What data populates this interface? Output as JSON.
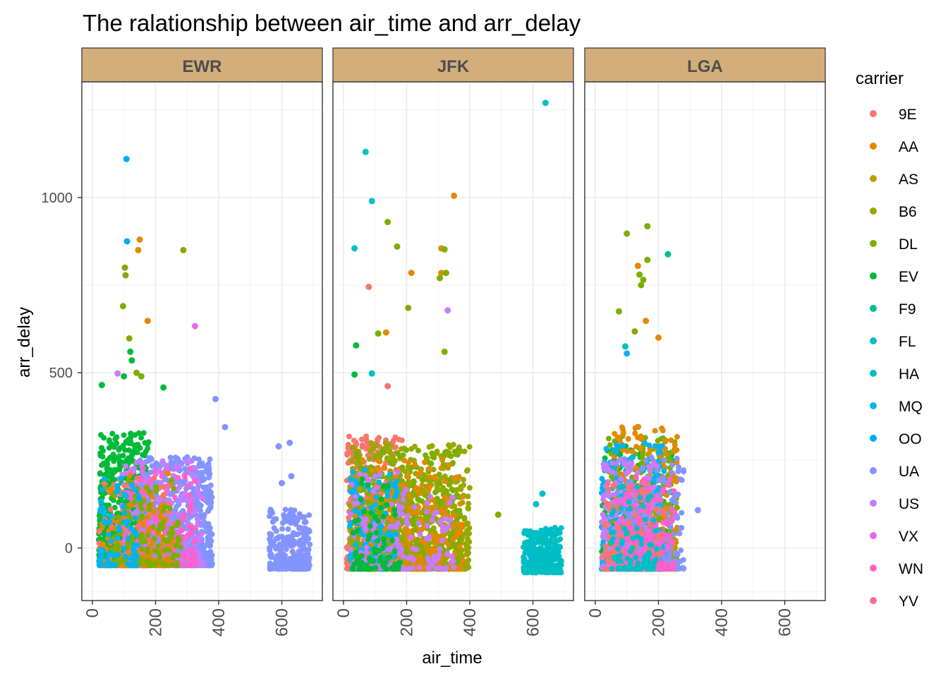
{
  "chart_data": {
    "type": "scatter",
    "title": "The ralationship between air_time and arr_delay",
    "xlabel": "air_time",
    "ylabel": "arr_delay",
    "legend_title": "carrier",
    "legend_position": "right",
    "grid": true,
    "xlim": [
      -20,
      715
    ],
    "ylim": [
      -150,
      1330
    ],
    "x_ticks": [
      0,
      200,
      400,
      600
    ],
    "y_ticks": [
      0,
      500,
      1000
    ],
    "strip_color": "#D2AE7B",
    "panels": [
      "EWR",
      "JFK",
      "LGA"
    ],
    "carriers": [
      {
        "name": "9E",
        "color": "#F8766D"
      },
      {
        "name": "AA",
        "color": "#E38900"
      },
      {
        "name": "AS",
        "color": "#C49A00"
      },
      {
        "name": "B6",
        "color": "#99A800"
      },
      {
        "name": "DL",
        "color": "#53B400"
      },
      {
        "name": "EV",
        "color": "#00BC56"
      },
      {
        "name": "F9",
        "color": "#00C094"
      },
      {
        "name": "FL",
        "color": "#00BFC4"
      },
      {
        "name": "HA",
        "color": "#00B6EB"
      },
      {
        "name": "MQ",
        "color": "#06A4FF"
      },
      {
        "name": "OO",
        "color": "#A58AFF"
      },
      {
        "name": "UA",
        "color": "#DF70F8"
      },
      {
        "name": "US",
        "color": "#FB61D7"
      },
      {
        "name": "VX",
        "color": "#FF66A8"
      },
      {
        "name": "WN",
        "color": "#FF61C3"
      },
      {
        "name": "YV",
        "color": "#FF6C91"
      }
    ],
    "legend_colors": [
      "#F8766D",
      "#E38900",
      "#C49A00",
      "#99A800",
      "#7CAE00",
      "#00BA38",
      "#00C08B",
      "#00BFC4",
      "#00BFC4",
      "#00B4F0",
      "#00A9FF",
      "#8494FF",
      "#C77CFF",
      "#ED68ED",
      "#FF61CC",
      "#FF6C91"
    ],
    "clusters": [
      {
        "panel": "EWR",
        "carrier": "EV",
        "x": [
          20,
          180
        ],
        "y": [
          -50,
          330
        ],
        "n": 700
      },
      {
        "panel": "EWR",
        "carrier": "UA",
        "x": [
          140,
          380
        ],
        "y": [
          -50,
          260
        ],
        "n": 800
      },
      {
        "panel": "EWR",
        "carrier": "US",
        "x": [
          80,
          350
        ],
        "y": [
          -50,
          250
        ],
        "n": 250
      },
      {
        "panel": "EWR",
        "carrier": "WN",
        "x": [
          100,
          330
        ],
        "y": [
          -50,
          230
        ],
        "n": 200
      },
      {
        "panel": "EWR",
        "carrier": "9E",
        "x": [
          20,
          260
        ],
        "y": [
          -50,
          200
        ],
        "n": 120
      },
      {
        "panel": "EWR",
        "carrier": "AA",
        "x": [
          30,
          250
        ],
        "y": [
          -50,
          220
        ],
        "n": 120
      },
      {
        "panel": "EWR",
        "carrier": "DL",
        "x": [
          60,
          280
        ],
        "y": [
          -50,
          200
        ],
        "n": 120
      },
      {
        "panel": "EWR",
        "carrier": "MQ",
        "x": [
          20,
          150
        ],
        "y": [
          -50,
          200
        ],
        "n": 80
      },
      {
        "panel": "EWR",
        "carrier": "UA",
        "x": [
          560,
          690
        ],
        "y": [
          -60,
          110
        ],
        "n": 250
      },
      {
        "panel": "JFK",
        "carrier": "9E",
        "x": [
          10,
          190
        ],
        "y": [
          -60,
          320
        ],
        "n": 500
      },
      {
        "panel": "JFK",
        "carrier": "B6",
        "x": [
          20,
          400
        ],
        "y": [
          -60,
          300
        ],
        "n": 900
      },
      {
        "panel": "JFK",
        "carrier": "DL",
        "x": [
          40,
          370
        ],
        "y": [
          -60,
          280
        ],
        "n": 400
      },
      {
        "panel": "JFK",
        "carrier": "AA",
        "x": [
          40,
          380
        ],
        "y": [
          -60,
          260
        ],
        "n": 250
      },
      {
        "panel": "JFK",
        "carrier": "MQ",
        "x": [
          20,
          170
        ],
        "y": [
          -60,
          250
        ],
        "n": 160
      },
      {
        "panel": "JFK",
        "carrier": "US",
        "x": [
          20,
          350
        ],
        "y": [
          -60,
          220
        ],
        "n": 160
      },
      {
        "panel": "JFK",
        "carrier": "EV",
        "x": [
          20,
          180
        ],
        "y": [
          -60,
          200
        ],
        "n": 80
      },
      {
        "panel": "JFK",
        "carrier": "HA",
        "x": [
          570,
          690
        ],
        "y": [
          -70,
          60
        ],
        "n": 300
      },
      {
        "panel": "LGA",
        "carrier": "EV",
        "x": [
          20,
          250
        ],
        "y": [
          -60,
          300
        ],
        "n": 300
      },
      {
        "panel": "LGA",
        "carrier": "DL",
        "x": [
          40,
          260
        ],
        "y": [
          -60,
          320
        ],
        "n": 400
      },
      {
        "panel": "LGA",
        "carrier": "AA",
        "x": [
          60,
          260
        ],
        "y": [
          -60,
          350
        ],
        "n": 300
      },
      {
        "panel": "LGA",
        "carrier": "MQ",
        "x": [
          20,
          220
        ],
        "y": [
          -60,
          300
        ],
        "n": 300
      },
      {
        "panel": "LGA",
        "carrier": "UA",
        "x": [
          60,
          280
        ],
        "y": [
          -60,
          260
        ],
        "n": 250
      },
      {
        "panel": "LGA",
        "carrier": "US",
        "x": [
          20,
          200
        ],
        "y": [
          -60,
          250
        ],
        "n": 250
      },
      {
        "panel": "LGA",
        "carrier": "9E",
        "x": [
          20,
          220
        ],
        "y": [
          -60,
          200
        ],
        "n": 150
      },
      {
        "panel": "LGA",
        "carrier": "WN",
        "x": [
          60,
          250
        ],
        "y": [
          -60,
          200
        ],
        "n": 150
      },
      {
        "panel": "LGA",
        "carrier": "FL",
        "x": [
          50,
          200
        ],
        "y": [
          -60,
          180
        ],
        "n": 80
      }
    ],
    "outliers": [
      {
        "panel": "EWR",
        "x": 108,
        "y": 1110,
        "carrier": "OO"
      },
      {
        "panel": "EWR",
        "x": 110,
        "y": 875,
        "carrier": "OO"
      },
      {
        "panel": "EWR",
        "x": 150,
        "y": 880,
        "carrier": "AA"
      },
      {
        "panel": "EWR",
        "x": 145,
        "y": 850,
        "carrier": "AA"
      },
      {
        "panel": "EWR",
        "x": 288,
        "y": 850,
        "carrier": "DL"
      },
      {
        "panel": "EWR",
        "x": 103,
        "y": 800,
        "carrier": "DL"
      },
      {
        "panel": "EWR",
        "x": 105,
        "y": 778,
        "carrier": "DL"
      },
      {
        "panel": "EWR",
        "x": 97,
        "y": 690,
        "carrier": "DL"
      },
      {
        "panel": "EWR",
        "x": 175,
        "y": 648,
        "carrier": "AA"
      },
      {
        "panel": "EWR",
        "x": 325,
        "y": 633,
        "carrier": "VX"
      },
      {
        "panel": "EWR",
        "x": 117,
        "y": 598,
        "carrier": "DL"
      },
      {
        "panel": "EWR",
        "x": 120,
        "y": 560,
        "carrier": "EV"
      },
      {
        "panel": "EWR",
        "x": 125,
        "y": 535,
        "carrier": "EV"
      },
      {
        "panel": "EWR",
        "x": 80,
        "y": 498,
        "carrier": "US"
      },
      {
        "panel": "EWR",
        "x": 140,
        "y": 500,
        "carrier": "DL"
      },
      {
        "panel": "EWR",
        "x": 155,
        "y": 490,
        "carrier": "DL"
      },
      {
        "panel": "EWR",
        "x": 100,
        "y": 490,
        "carrier": "EV"
      },
      {
        "panel": "EWR",
        "x": 225,
        "y": 458,
        "carrier": "EV"
      },
      {
        "panel": "EWR",
        "x": 30,
        "y": 465,
        "carrier": "EV"
      },
      {
        "panel": "EWR",
        "x": 390,
        "y": 425,
        "carrier": "UA"
      },
      {
        "panel": "EWR",
        "x": 420,
        "y": 345,
        "carrier": "UA"
      },
      {
        "panel": "EWR",
        "x": 625,
        "y": 300,
        "carrier": "UA"
      },
      {
        "panel": "EWR",
        "x": 590,
        "y": 290,
        "carrier": "UA"
      },
      {
        "panel": "EWR",
        "x": 630,
        "y": 205,
        "carrier": "UA"
      },
      {
        "panel": "EWR",
        "x": 600,
        "y": 185,
        "carrier": "UA"
      },
      {
        "panel": "JFK",
        "x": 640,
        "y": 1270,
        "carrier": "FL"
      },
      {
        "panel": "JFK",
        "x": 70,
        "y": 1130,
        "carrier": "HA"
      },
      {
        "panel": "JFK",
        "x": 350,
        "y": 1005,
        "carrier": "AA"
      },
      {
        "panel": "JFK",
        "x": 90,
        "y": 990,
        "carrier": "HA"
      },
      {
        "panel": "JFK",
        "x": 140,
        "y": 930,
        "carrier": "DL"
      },
      {
        "panel": "JFK",
        "x": 170,
        "y": 860,
        "carrier": "DL"
      },
      {
        "panel": "JFK",
        "x": 35,
        "y": 855,
        "carrier": "HA"
      },
      {
        "panel": "JFK",
        "x": 310,
        "y": 855,
        "carrier": "AA"
      },
      {
        "panel": "JFK",
        "x": 320,
        "y": 852,
        "carrier": "DL"
      },
      {
        "panel": "JFK",
        "x": 215,
        "y": 785,
        "carrier": "AA"
      },
      {
        "panel": "JFK",
        "x": 310,
        "y": 785,
        "carrier": "AA"
      },
      {
        "panel": "JFK",
        "x": 325,
        "y": 785,
        "carrier": "DL"
      },
      {
        "panel": "JFK",
        "x": 305,
        "y": 770,
        "carrier": "DL"
      },
      {
        "panel": "JFK",
        "x": 80,
        "y": 745,
        "carrier": "9E"
      },
      {
        "panel": "JFK",
        "x": 205,
        "y": 685,
        "carrier": "DL"
      },
      {
        "panel": "JFK",
        "x": 330,
        "y": 678,
        "carrier": "US"
      },
      {
        "panel": "JFK",
        "x": 135,
        "y": 615,
        "carrier": "AA"
      },
      {
        "panel": "JFK",
        "x": 110,
        "y": 612,
        "carrier": "DL"
      },
      {
        "panel": "JFK",
        "x": 40,
        "y": 578,
        "carrier": "EV"
      },
      {
        "panel": "JFK",
        "x": 320,
        "y": 560,
        "carrier": "DL"
      },
      {
        "panel": "JFK",
        "x": 90,
        "y": 498,
        "carrier": "HA"
      },
      {
        "panel": "JFK",
        "x": 35,
        "y": 495,
        "carrier": "EV"
      },
      {
        "panel": "JFK",
        "x": 140,
        "y": 462,
        "carrier": "9E"
      },
      {
        "panel": "JFK",
        "x": 490,
        "y": 95,
        "carrier": "DL"
      },
      {
        "panel": "JFK",
        "x": 630,
        "y": 155,
        "carrier": "FL"
      },
      {
        "panel": "JFK",
        "x": 610,
        "y": 125,
        "carrier": "FL"
      },
      {
        "panel": "LGA",
        "x": 100,
        "y": 897,
        "carrier": "DL"
      },
      {
        "panel": "LGA",
        "x": 165,
        "y": 918,
        "carrier": "DL"
      },
      {
        "panel": "LGA",
        "x": 230,
        "y": 838,
        "carrier": "F9"
      },
      {
        "panel": "LGA",
        "x": 165,
        "y": 822,
        "carrier": "DL"
      },
      {
        "panel": "LGA",
        "x": 135,
        "y": 805,
        "carrier": "AA"
      },
      {
        "panel": "LGA",
        "x": 152,
        "y": 765,
        "carrier": "DL"
      },
      {
        "panel": "LGA",
        "x": 140,
        "y": 780,
        "carrier": "DL"
      },
      {
        "panel": "LGA",
        "x": 145,
        "y": 750,
        "carrier": "DL"
      },
      {
        "panel": "LGA",
        "x": 75,
        "y": 675,
        "carrier": "DL"
      },
      {
        "panel": "LGA",
        "x": 160,
        "y": 648,
        "carrier": "AA"
      },
      {
        "panel": "LGA",
        "x": 125,
        "y": 618,
        "carrier": "DL"
      },
      {
        "panel": "LGA",
        "x": 200,
        "y": 600,
        "carrier": "AA"
      },
      {
        "panel": "LGA",
        "x": 95,
        "y": 575,
        "carrier": "FL"
      },
      {
        "panel": "LGA",
        "x": 100,
        "y": 555,
        "carrier": "MQ"
      },
      {
        "panel": "LGA",
        "x": 325,
        "y": 108,
        "carrier": "UA"
      }
    ]
  }
}
